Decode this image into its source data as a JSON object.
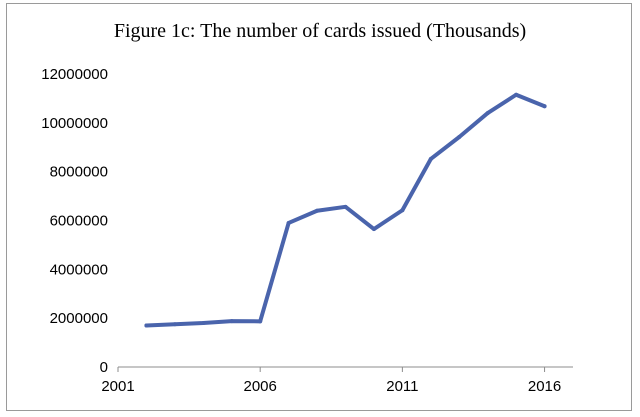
{
  "chart_data": {
    "type": "line",
    "title": "Figure 1c: The number of cards issued (Thousands)",
    "xlabel": "",
    "ylabel": "",
    "x": [
      2002,
      2003,
      2004,
      2005,
      2006,
      2007,
      2008,
      2009,
      2010,
      2011,
      2012,
      2013,
      2014,
      2015,
      2016
    ],
    "series": [
      {
        "values": [
          1700000,
          1750000,
          1800000,
          1880000,
          1870000,
          5900000,
          6400000,
          6560000,
          5650000,
          6420000,
          8520000,
          9420000,
          10400000,
          11150000,
          10680000
        ],
        "color": "#4a64ac"
      }
    ],
    "xlim": [
      2001,
      2017
    ],
    "ylim": [
      0,
      12000000
    ],
    "x_ticks": [
      2001,
      2006,
      2011,
      2016
    ],
    "y_ticks": [
      0,
      2000000,
      4000000,
      6000000,
      8000000,
      10000000,
      12000000
    ],
    "grid": false,
    "legend": "none"
  }
}
